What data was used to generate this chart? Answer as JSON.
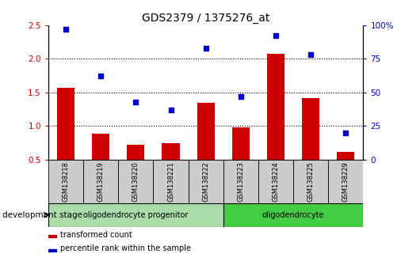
{
  "title": "GDS2379 / 1375276_at",
  "samples": [
    "GSM138218",
    "GSM138219",
    "GSM138220",
    "GSM138221",
    "GSM138222",
    "GSM138223",
    "GSM138224",
    "GSM138225",
    "GSM138229"
  ],
  "transformed_count": [
    1.57,
    0.88,
    0.72,
    0.75,
    1.35,
    0.98,
    2.08,
    1.42,
    0.62
  ],
  "percentile_rank": [
    97,
    62,
    43,
    37,
    83,
    47,
    92,
    78,
    20
  ],
  "ylim_left": [
    0.5,
    2.5
  ],
  "ylim_right": [
    0,
    100
  ],
  "yticks_left": [
    0.5,
    1.0,
    1.5,
    2.0,
    2.5
  ],
  "yticks_right": [
    0,
    25,
    50,
    75,
    100
  ],
  "ytick_labels_right": [
    "0",
    "25",
    "50",
    "75",
    "100%"
  ],
  "groups": [
    {
      "label": "oligodendrocyte progenitor",
      "start": 0,
      "end": 4,
      "color": "#aaddaa"
    },
    {
      "label": "oligodendrocyte",
      "start": 5,
      "end": 8,
      "color": "#44cc44"
    }
  ],
  "bar_color": "#CC0000",
  "dot_color": "#0000CC",
  "bar_width": 0.5,
  "bg_color": "#CCCCCC",
  "legend_bar_label": "transformed count",
  "legend_dot_label": "percentile rank within the sample",
  "dev_stage_label": "development stage",
  "left_tick_color": "#CC0000",
  "right_tick_color": "#0000CC"
}
